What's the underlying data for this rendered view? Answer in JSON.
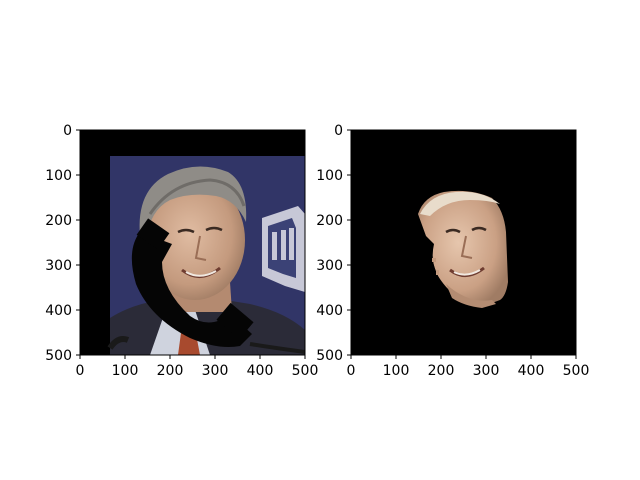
{
  "chart_data": [
    {
      "type": "image",
      "title": "",
      "xlabel": "",
      "ylabel": "",
      "xlim": [
        0,
        500
      ],
      "ylim": [
        500,
        0
      ],
      "xticks": [
        "0",
        "100",
        "200",
        "300",
        "400",
        "500"
      ],
      "yticks": [
        "0",
        "100",
        "200",
        "300",
        "400",
        "500"
      ],
      "grid": false,
      "content": "portrait photo of smiling man with dark occluding stroke across face, black padding top and left"
    },
    {
      "type": "image",
      "title": "",
      "xlabel": "",
      "ylabel": "",
      "xlim": [
        0,
        500
      ],
      "ylim": [
        500,
        0
      ],
      "xticks": [
        "0",
        "100",
        "200",
        "300",
        "400",
        "500"
      ],
      "yticks": [
        "0",
        "100",
        "200",
        "300",
        "400",
        "500"
      ],
      "grid": false,
      "content": "segmented face mask on black background"
    }
  ],
  "colors": {
    "backdrop": "#34386b",
    "skin": "#c9a48a",
    "hair": "#8e8b86",
    "suit": "#2a2a35",
    "mask_bg": "#000000"
  }
}
